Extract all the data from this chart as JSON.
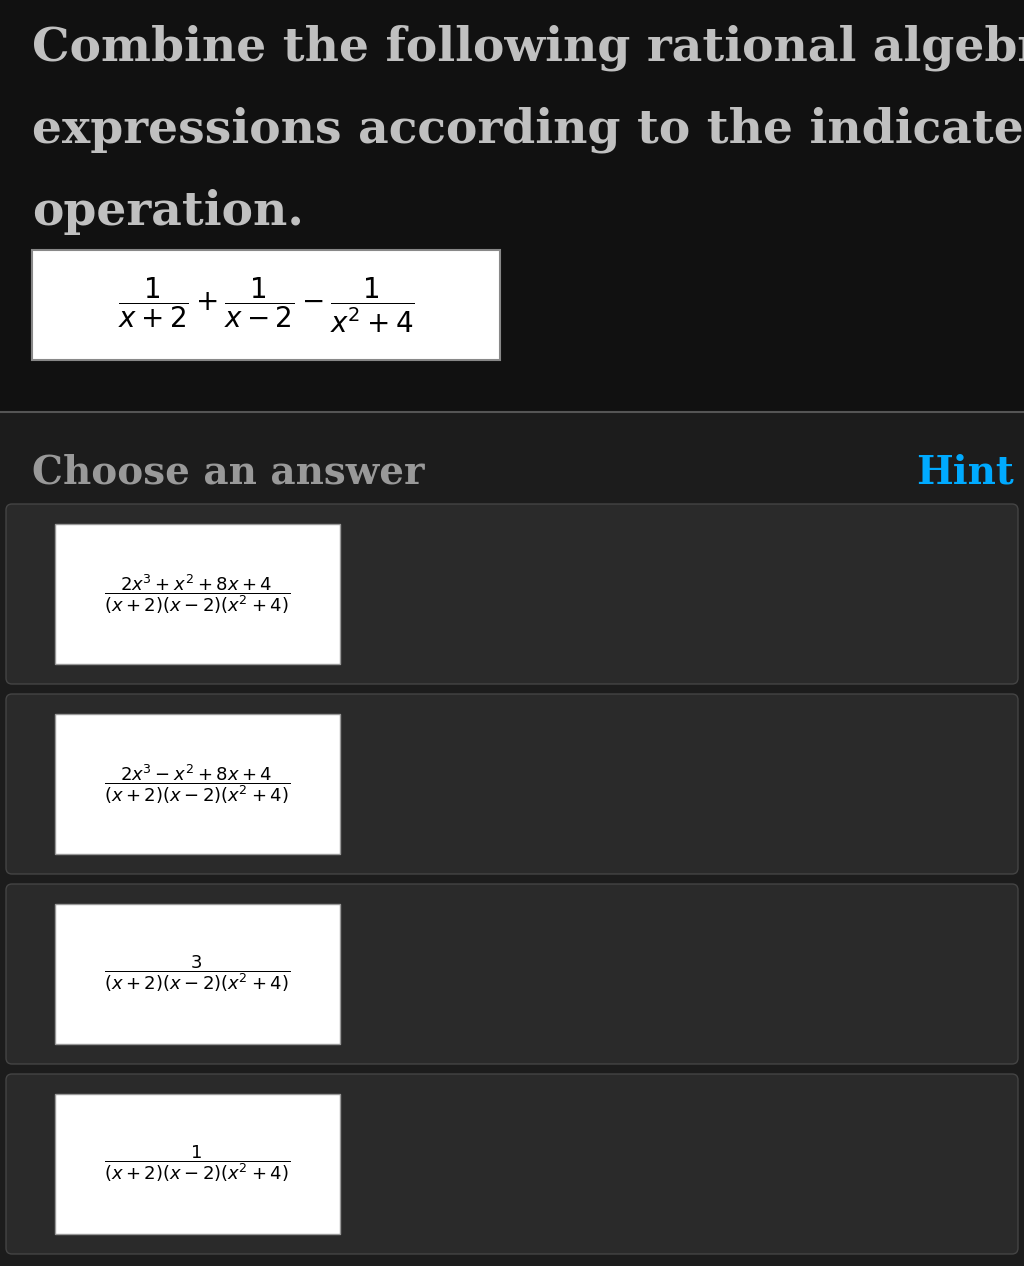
{
  "bg_color": "#111111",
  "top_bg": "#111111",
  "bottom_bg": "#1c1c1c",
  "title_lines": [
    "Combine the following rational algebraic",
    "expressions according to the indicated",
    "operation."
  ],
  "title_color": "#c0c0c0",
  "title_fontsize": 34,
  "question_formula": "$\\dfrac{1}{x+2}+\\dfrac{1}{x-2}-\\dfrac{1}{x^2+4}$",
  "question_box_color": "#ffffff",
  "divider_color": "#555555",
  "choose_text": "Choose an answer",
  "choose_color": "#999999",
  "choose_fontsize": 28,
  "hint_text": "Hint",
  "hint_color": "#00aaff",
  "hint_fontsize": 28,
  "answer_outer_bg": "#2a2a2a",
  "answer_outer_border": "#444444",
  "answer_inner_bg": "#ffffff",
  "answer_inner_border": "#999999",
  "answers": [
    "$\\dfrac{2x^3+x^2+8x+4}{(x+2)(x-2)(x^2+4)}$",
    "$\\dfrac{2x^3-x^2+8x+4}{(x+2)(x-2)(x^2+4)}$",
    "$\\dfrac{3}{(x+2)(x-2)(x^2+4)}$",
    "$\\dfrac{1}{(x+2)(x-2)(x^2+4)}$"
  ],
  "fig_width": 10.24,
  "fig_height": 12.66,
  "dpi": 100
}
